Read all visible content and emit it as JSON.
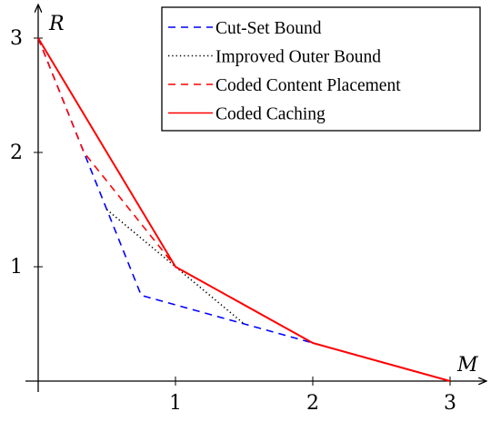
{
  "chart_data": {
    "type": "line",
    "title": "",
    "xlabel": "M",
    "ylabel": "R",
    "xlim": [
      0,
      3
    ],
    "ylim": [
      0,
      3
    ],
    "xticks": [
      1,
      2,
      3
    ],
    "yticks": [
      1,
      2,
      3
    ],
    "grid": false,
    "legend_position": "top-right",
    "series": [
      {
        "name": "Cut-Set Bound",
        "color": "#0000ff",
        "style": "dashed",
        "points": [
          [
            0,
            3
          ],
          [
            0.333,
            2
          ],
          [
            0.5,
            1.5
          ],
          [
            0.75,
            0.75
          ],
          [
            1.5,
            0.5
          ],
          [
            2,
            0.333
          ],
          [
            3,
            0
          ]
        ]
      },
      {
        "name": "Improved Outer Bound",
        "color": "#000000",
        "style": "dotted",
        "points": [
          [
            0.5,
            1.5
          ],
          [
            1,
            1
          ],
          [
            1.5,
            0.5
          ]
        ]
      },
      {
        "name": "Coded Content Placement",
        "color": "#ff0000",
        "style": "dashed",
        "points": [
          [
            0,
            3
          ],
          [
            0.333,
            2
          ],
          [
            1,
            1
          ]
        ]
      },
      {
        "name": "Coded Caching",
        "color": "#ff0000",
        "style": "solid",
        "points": [
          [
            0,
            3
          ],
          [
            1,
            1
          ],
          [
            2,
            0.333
          ],
          [
            3,
            0
          ]
        ]
      }
    ]
  }
}
